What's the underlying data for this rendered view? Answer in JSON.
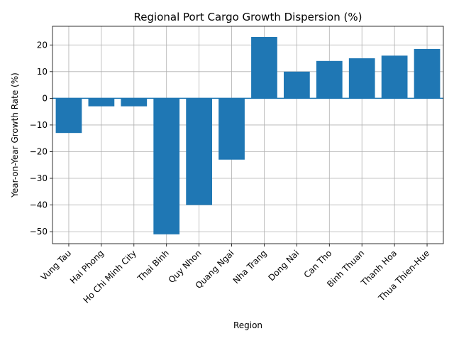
{
  "chart_data": {
    "type": "bar",
    "title": "Regional Port Cargo Growth Dispersion (%)",
    "xlabel": "Region",
    "ylabel": "Year-on-Year Growth Rate (%)",
    "categories": [
      "Vung Tau",
      "Hai Phong",
      "Ho Chi Minh City",
      "Thai Binh",
      "Quy Nhon",
      "Quang Ngai",
      "Nha Trang",
      "Dong Nai",
      "Can Tho",
      "Binh Thuan",
      "Thanh Hoa",
      "Thua Thien-Hue"
    ],
    "values": [
      -13,
      -3,
      -3,
      -51,
      -40,
      -23,
      23,
      10,
      14,
      15,
      16,
      18.5
    ],
    "ylim": [
      -54.5,
      27
    ],
    "yticks": [
      -50,
      -40,
      -30,
      -20,
      -10,
      0,
      10,
      20
    ],
    "ytick_labels": [
      "−50",
      "−40",
      "−30",
      "−20",
      "−10",
      "0",
      "10",
      "20"
    ],
    "grid": true,
    "bar_color": "#1f77b4",
    "zero_line_color": "#1f77b4"
  }
}
